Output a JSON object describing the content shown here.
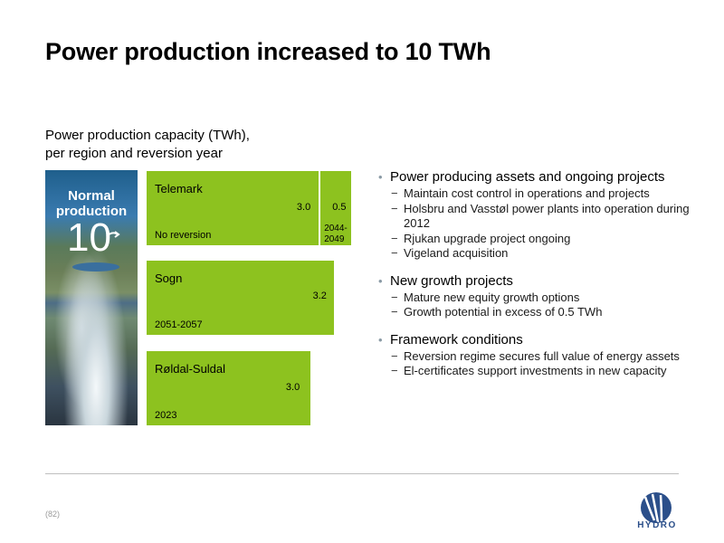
{
  "title": "Power production increased to 10 TWh",
  "chart_title_line1": "Power production capacity (TWh),",
  "chart_title_line2": "per region and reversion year",
  "photo": {
    "label_line1": "Normal",
    "label_line2": "production",
    "big_number": "10"
  },
  "chart_data": {
    "type": "bar",
    "orientation": "horizontal",
    "title": "Power production capacity (TWh), per region and reversion year",
    "categories": [
      "Telemark",
      "Sogn",
      "Røldal-Suldal"
    ],
    "segments": [
      [
        {
          "value": 3.0,
          "label": "3.0",
          "reversion": "No reversion"
        },
        {
          "value": 0.5,
          "label": "0.5",
          "reversion": "2044-2049"
        }
      ],
      [
        {
          "value": 3.2,
          "label": "3.2",
          "reversion": "2051-2057"
        }
      ],
      [
        {
          "value": 3.0,
          "label": "3.0",
          "reversion": "2023"
        }
      ]
    ],
    "color": "#8dc21f"
  },
  "bar_labels": {
    "telemark_seg2_year_line1": "2044-",
    "telemark_seg2_year_line2": "2049"
  },
  "bullets": [
    {
      "heading": "Power producing assets and ongoing projects",
      "items": [
        "Maintain cost control in operations and projects",
        "Holsbru and Vasstøl power plants into operation during 2012",
        "Rjukan upgrade project ongoing",
        "Vigeland acquisition"
      ]
    },
    {
      "heading": "New growth projects",
      "items": [
        "Mature new equity growth options",
        "Growth potential in excess of 0.5 TWh"
      ]
    },
    {
      "heading": "Framework conditions",
      "items": [
        "Reversion regime secures full value of energy assets",
        "El-certificates support investments in new capacity"
      ]
    }
  ],
  "footer": {
    "page": "(82)",
    "logo_text": "HYDRO"
  },
  "colors": {
    "bar": "#8dc21f",
    "logo": "#2b4f8a",
    "divider": "#bfbfbf"
  }
}
